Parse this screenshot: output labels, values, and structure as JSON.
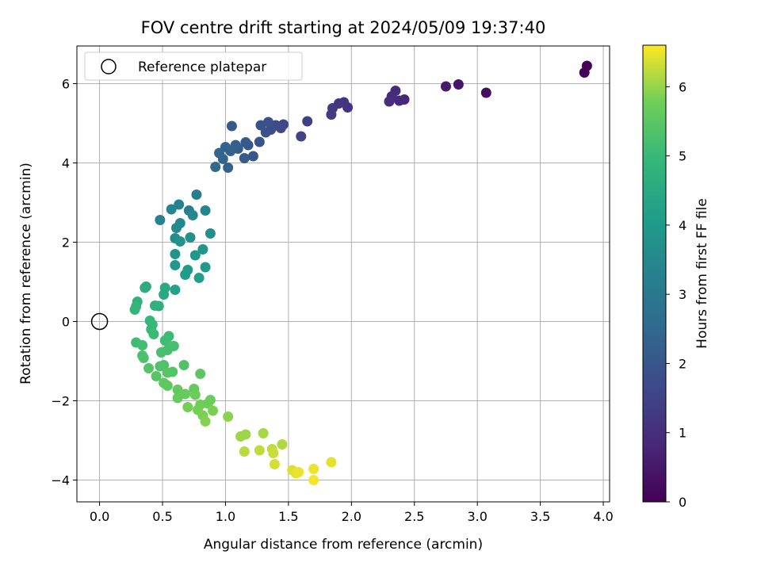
{
  "chart_data": {
    "type": "scatter",
    "title": "FOV centre drift starting at 2024/05/09 19:37:40",
    "xlabel": "Angular distance from reference (arcmin)",
    "ylabel": "Rotation from reference (arcmin)",
    "xlim": [
      -0.18,
      4.05
    ],
    "ylim": [
      -4.55,
      6.95
    ],
    "xticks": [
      0.0,
      0.5,
      1.0,
      1.5,
      2.0,
      2.5,
      3.0,
      3.5,
      4.0
    ],
    "xtick_labels": [
      "0.0",
      "0.5",
      "1.0",
      "1.5",
      "2.0",
      "2.5",
      "3.0",
      "3.5",
      "4.0"
    ],
    "yticks": [
      -4,
      -2,
      0,
      2,
      4,
      6
    ],
    "ytick_labels": [
      "−4",
      "−2",
      "0",
      "2",
      "4",
      "6"
    ],
    "grid": true,
    "colormap": "viridis",
    "colorbar": {
      "label": "Hours from first FF file",
      "range": [
        0,
        6.6
      ],
      "ticks": [
        0,
        1,
        2,
        3,
        4,
        5,
        6
      ],
      "tick_labels": [
        "0",
        "1",
        "2",
        "3",
        "4",
        "5",
        "6"
      ]
    },
    "legend": {
      "position": "top-left",
      "entries": [
        {
          "label": "Reference platepar",
          "marker": "open-circle"
        }
      ]
    },
    "reference_point": {
      "x": 0.0,
      "y": 0.0
    },
    "series": [
      {
        "points": [
          [
            3.87,
            6.45,
            0.02
          ],
          [
            3.85,
            6.28,
            0.05
          ],
          [
            3.07,
            5.77,
            0.3
          ],
          [
            2.85,
            5.98,
            0.45
          ],
          [
            2.75,
            5.93,
            0.55
          ],
          [
            2.42,
            5.6,
            0.8
          ],
          [
            2.38,
            5.57,
            0.85
          ],
          [
            2.35,
            5.82,
            0.9
          ],
          [
            2.32,
            5.68,
            0.95
          ],
          [
            2.3,
            5.55,
            1.0
          ],
          [
            1.97,
            5.4,
            1.1
          ],
          [
            1.94,
            5.53,
            1.15
          ],
          [
            1.9,
            5.5,
            1.2
          ],
          [
            1.85,
            5.38,
            1.25
          ],
          [
            1.84,
            5.22,
            1.3
          ],
          [
            1.65,
            5.05,
            1.45
          ],
          [
            1.6,
            4.67,
            1.5
          ],
          [
            1.46,
            4.97,
            1.6
          ],
          [
            1.44,
            4.88,
            1.65
          ],
          [
            1.4,
            4.95,
            1.7
          ],
          [
            1.36,
            4.84,
            1.75
          ],
          [
            1.34,
            5.03,
            1.8
          ],
          [
            1.32,
            4.77,
            1.85
          ],
          [
            1.28,
            4.95,
            1.9
          ],
          [
            1.27,
            4.53,
            1.95
          ],
          [
            1.22,
            4.17,
            2.0
          ],
          [
            1.18,
            4.45,
            2.05
          ],
          [
            1.16,
            4.52,
            2.1
          ],
          [
            1.15,
            4.12,
            2.15
          ],
          [
            1.1,
            4.36,
            2.2
          ],
          [
            1.08,
            4.45,
            2.25
          ],
          [
            1.05,
            4.93,
            2.1
          ],
          [
            1.04,
            4.3,
            2.3
          ],
          [
            1.02,
            3.88,
            2.35
          ],
          [
            1.0,
            4.4,
            2.35
          ],
          [
            0.98,
            4.1,
            2.4
          ],
          [
            0.95,
            4.25,
            2.45
          ],
          [
            0.92,
            3.9,
            2.5
          ],
          [
            0.77,
            3.2,
            3.2
          ],
          [
            0.71,
            2.8,
            3.2
          ],
          [
            0.63,
            2.95,
            3.3
          ],
          [
            0.57,
            2.83,
            3.35
          ],
          [
            0.48,
            2.56,
            3.3
          ],
          [
            0.84,
            2.8,
            3.4
          ],
          [
            0.74,
            2.68,
            3.45
          ],
          [
            0.64,
            2.48,
            3.5
          ],
          [
            0.61,
            2.36,
            3.55
          ],
          [
            0.6,
            2.1,
            3.6
          ],
          [
            0.88,
            2.22,
            3.7
          ],
          [
            0.72,
            2.12,
            3.75
          ],
          [
            0.64,
            2.02,
            3.8
          ],
          [
            0.6,
            1.7,
            3.85
          ],
          [
            0.82,
            1.82,
            3.9
          ],
          [
            0.76,
            1.67,
            3.95
          ],
          [
            0.6,
            1.42,
            3.95
          ],
          [
            0.84,
            1.37,
            4.0
          ],
          [
            0.7,
            1.3,
            4.05
          ],
          [
            0.68,
            1.18,
            4.1
          ],
          [
            0.79,
            1.1,
            4.15
          ],
          [
            0.6,
            0.8,
            4.25
          ],
          [
            0.52,
            0.85,
            4.45
          ],
          [
            0.51,
            0.68,
            4.5
          ],
          [
            0.37,
            0.88,
            4.55
          ],
          [
            0.36,
            0.85,
            4.6
          ],
          [
            0.47,
            0.39,
            4.7
          ],
          [
            0.44,
            0.4,
            4.75
          ],
          [
            0.3,
            0.5,
            4.8
          ],
          [
            0.29,
            0.38,
            4.85
          ],
          [
            0.28,
            0.3,
            4.9
          ],
          [
            0.4,
            0.02,
            4.95
          ],
          [
            0.42,
            -0.08,
            5.0
          ],
          [
            0.41,
            -0.2,
            5.0
          ],
          [
            0.43,
            -0.32,
            5.05
          ],
          [
            0.55,
            -0.37,
            5.05
          ],
          [
            0.52,
            -0.48,
            5.1
          ],
          [
            0.29,
            -0.53,
            5.1
          ],
          [
            0.34,
            -0.6,
            5.15
          ],
          [
            0.56,
            -0.62,
            5.15
          ],
          [
            0.59,
            -0.62,
            5.2
          ],
          [
            0.54,
            -0.72,
            5.2
          ],
          [
            0.49,
            -0.78,
            5.25
          ],
          [
            0.34,
            -0.86,
            5.25
          ],
          [
            0.35,
            -0.92,
            5.3
          ],
          [
            0.51,
            -1.1,
            5.3
          ],
          [
            0.48,
            -1.13,
            5.35
          ],
          [
            0.67,
            -1.1,
            5.35
          ],
          [
            0.39,
            -1.18,
            5.4
          ],
          [
            0.58,
            -1.27,
            5.4
          ],
          [
            0.54,
            -1.29,
            5.45
          ],
          [
            0.45,
            -1.38,
            5.45
          ],
          [
            0.8,
            -1.32,
            5.5
          ],
          [
            0.51,
            -1.55,
            5.55
          ],
          [
            0.54,
            -1.62,
            5.55
          ],
          [
            0.62,
            -1.72,
            5.6
          ],
          [
            0.75,
            -1.7,
            5.6
          ],
          [
            0.68,
            -1.83,
            5.65
          ],
          [
            0.62,
            -1.93,
            5.65
          ],
          [
            0.76,
            -1.85,
            5.7
          ],
          [
            0.88,
            -1.98,
            5.7
          ],
          [
            0.86,
            -2.07,
            5.75
          ],
          [
            0.8,
            -2.1,
            5.75
          ],
          [
            0.7,
            -2.16,
            5.8
          ],
          [
            0.78,
            -2.23,
            5.8
          ],
          [
            0.9,
            -2.25,
            5.85
          ],
          [
            0.82,
            -2.37,
            5.85
          ],
          [
            0.84,
            -2.52,
            5.9
          ],
          [
            1.02,
            -2.4,
            5.95
          ],
          [
            1.12,
            -2.9,
            6.05
          ],
          [
            1.16,
            -2.85,
            6.05
          ],
          [
            1.3,
            -2.82,
            6.1
          ],
          [
            1.45,
            -3.1,
            6.15
          ],
          [
            1.15,
            -3.28,
            6.2
          ],
          [
            1.27,
            -3.25,
            6.25
          ],
          [
            1.37,
            -3.22,
            6.25
          ],
          [
            1.38,
            -3.32,
            6.3
          ],
          [
            1.39,
            -3.6,
            6.35
          ],
          [
            1.53,
            -3.75,
            6.4
          ],
          [
            1.56,
            -3.83,
            6.45
          ],
          [
            1.58,
            -3.8,
            6.5
          ],
          [
            1.7,
            -3.72,
            6.5
          ],
          [
            1.84,
            -3.55,
            6.45
          ],
          [
            1.7,
            -4.0,
            6.55
          ]
        ]
      }
    ]
  }
}
